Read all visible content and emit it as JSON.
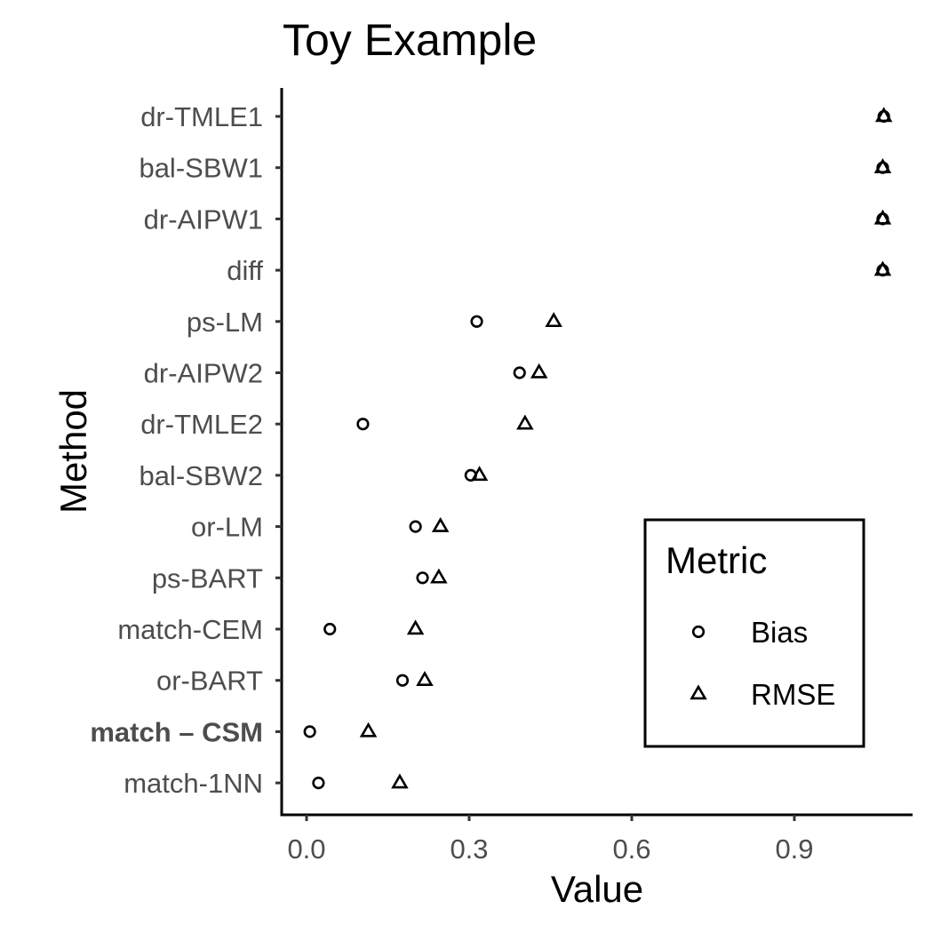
{
  "chart_data": {
    "type": "scatter",
    "title": "Toy Example",
    "xlabel": "Value",
    "ylabel": "Method",
    "xlim": [
      -0.04,
      1.12
    ],
    "xticks": [
      0.0,
      0.3,
      0.6,
      0.9
    ],
    "xtick_labels": [
      "0.0",
      "0.3",
      "0.6",
      "0.9"
    ],
    "grid": false,
    "legend_position": "right",
    "categories": [
      {
        "label": "dr-TMLE1",
        "bold": false
      },
      {
        "label": "bal-SBW1",
        "bold": false
      },
      {
        "label": "dr-AIPW1",
        "bold": false
      },
      {
        "label": "diff",
        "bold": false
      },
      {
        "label": "ps-LM",
        "bold": false
      },
      {
        "label": "dr-AIPW2",
        "bold": false
      },
      {
        "label": "dr-TMLE2",
        "bold": false
      },
      {
        "label": "bal-SBW2",
        "bold": false
      },
      {
        "label": "or-LM",
        "bold": false
      },
      {
        "label": "ps-BART",
        "bold": false
      },
      {
        "label": "match-CEM",
        "bold": false
      },
      {
        "label": "or-BART",
        "bold": false
      },
      {
        "label": "match – CSM",
        "bold": true
      },
      {
        "label": "match-1NN",
        "bold": false
      }
    ],
    "legend": {
      "title": "Metric",
      "entries": [
        {
          "name": "Bias",
          "shape": "circle"
        },
        {
          "name": "RMSE",
          "shape": "triangle"
        }
      ]
    },
    "series": [
      {
        "name": "Bias",
        "shape": "circle",
        "values": [
          1.065,
          1.063,
          1.063,
          1.063,
          0.314,
          0.393,
          0.104,
          0.303,
          0.201,
          0.214,
          0.043,
          0.177,
          0.006,
          0.022
        ]
      },
      {
        "name": "RMSE",
        "shape": "triangle",
        "values": [
          1.065,
          1.063,
          1.063,
          1.063,
          0.456,
          0.429,
          0.403,
          0.319,
          0.247,
          0.244,
          0.201,
          0.218,
          0.114,
          0.172
        ]
      }
    ]
  }
}
